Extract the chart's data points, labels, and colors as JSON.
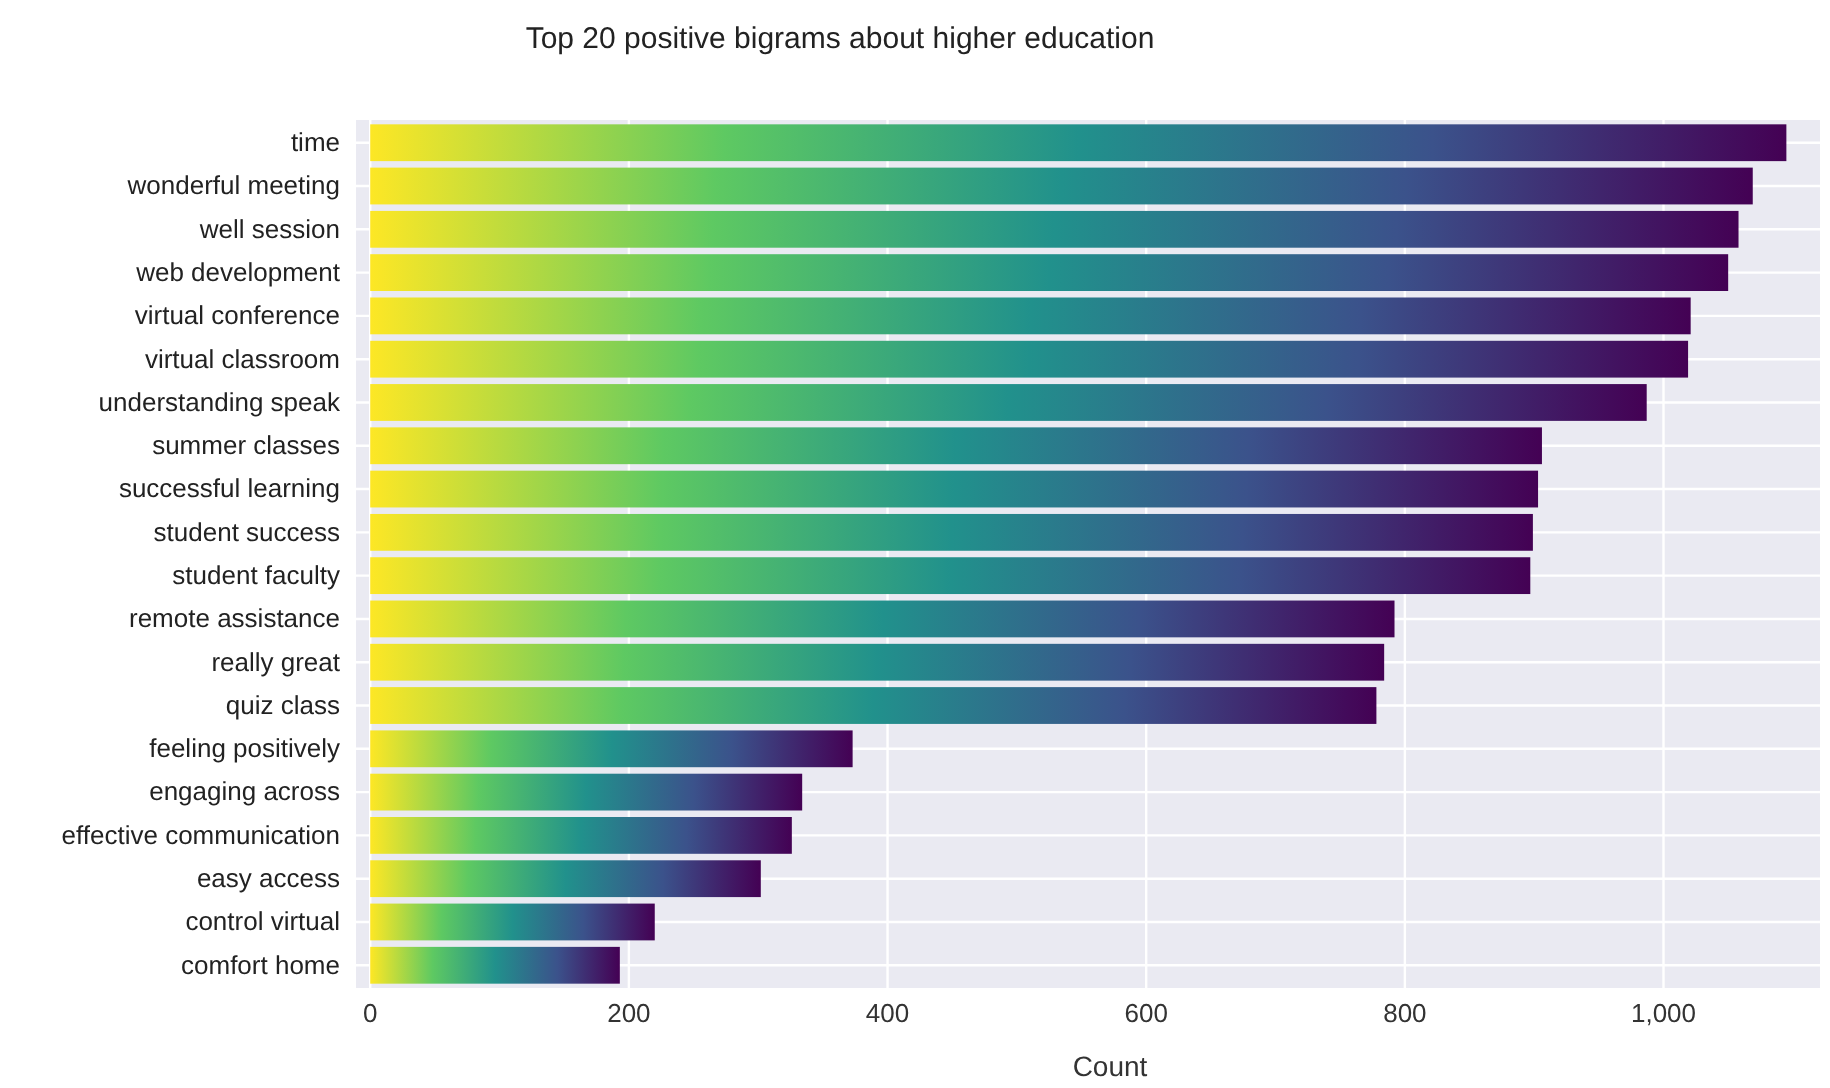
{
  "chart_data": {
    "type": "bar",
    "orientation": "horizontal",
    "title": "Top 20 positive bigrams about higher education",
    "xlabel": "Count",
    "categories": [
      "time",
      "wonderful meeting",
      "well session",
      "web development",
      "virtual conference",
      "virtual classroom",
      "understanding speak",
      "summer classes",
      "successful learning",
      "student success",
      "student faculty",
      "remote assistance",
      "really great",
      "quiz class",
      "feeling positively",
      "engaging across",
      "effective communication",
      "easy access",
      "control virtual",
      "comfort home"
    ],
    "series": [
      {
        "color": "#21918c",
        "values": [
          1095,
          1069,
          1058,
          1050,
          1021,
          1019,
          987,
          906,
          903,
          899,
          897,
          792,
          784,
          778,
          373,
          334,
          326,
          302,
          220,
          193
        ]
      }
    ],
    "xlim": [
      -11,
      1121
    ],
    "xticks": [
      0,
      200,
      400,
      600,
      800,
      {
        "value": 1000,
        "label": "1,000"
      }
    ],
    "grid": true
  }
}
